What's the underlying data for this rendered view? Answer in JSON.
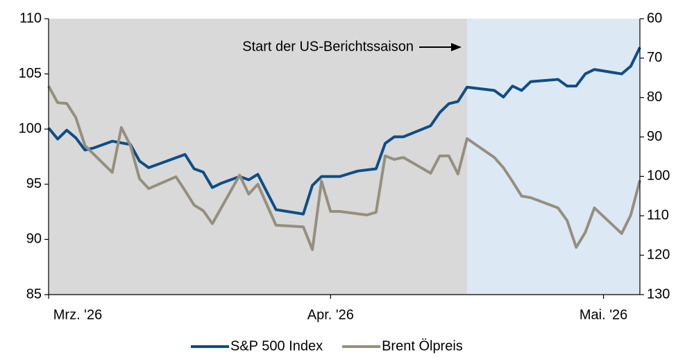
{
  "chart_data": {
    "type": "line",
    "annotation": "Start der US-Berichtssaison",
    "xlim": [
      0,
      65
    ],
    "xticks": [
      {
        "value": 0,
        "label": "Mrz. '26"
      },
      {
        "value": 31,
        "label": "Apr. '26"
      },
      {
        "value": 61,
        "label": "Mai. '26"
      }
    ],
    "ylim": [
      85,
      110
    ],
    "yticks": [
      85,
      90,
      95,
      100,
      105,
      110
    ],
    "y2lim": [
      130,
      60
    ],
    "y2ticks": [
      60,
      70,
      80,
      90,
      100,
      110,
      120,
      130
    ],
    "shading": [
      {
        "x0": 0,
        "x1": 46,
        "color": "#d9d9d9"
      },
      {
        "x0": 46,
        "x1": 65,
        "color": "#dde8f5"
      }
    ],
    "legend": "bottom",
    "series": [
      {
        "name": "S&P 500 Index",
        "color": "#0e4e85",
        "axis": "y",
        "x": [
          0,
          1,
          2,
          3,
          4,
          5,
          7,
          9,
          10,
          11,
          13,
          15,
          16,
          17,
          18,
          19,
          21,
          22,
          23,
          25,
          28,
          29,
          30,
          32,
          34,
          36,
          37,
          38,
          39,
          42,
          43,
          44,
          45,
          46,
          49,
          50,
          51,
          52,
          53,
          56,
          57,
          58,
          59,
          60,
          63,
          64,
          65
        ],
        "values": [
          100.1,
          99.1,
          99.9,
          99.2,
          98.1,
          98.3,
          98.9,
          98.6,
          97.1,
          96.5,
          97.1,
          97.7,
          96.4,
          96.1,
          94.7,
          95.1,
          95.7,
          95.4,
          95.9,
          92.7,
          92.3,
          94.9,
          95.7,
          95.7,
          96.2,
          96.4,
          98.7,
          99.3,
          99.3,
          100.3,
          101.5,
          102.3,
          102.5,
          103.8,
          103.5,
          102.9,
          103.9,
          103.5,
          104.3,
          104.5,
          103.9,
          103.9,
          105.0,
          105.4,
          105.0,
          105.7,
          107.4
        ]
      },
      {
        "name": "Brent Ölpreis",
        "color": "#958f7f",
        "axis": "y2",
        "x": [
          0,
          1,
          2,
          3,
          4,
          7,
          8,
          9,
          10,
          11,
          14,
          15,
          16,
          17,
          18,
          21,
          22,
          23,
          25,
          28,
          29,
          30,
          31,
          32,
          35,
          36,
          37,
          38,
          39,
          42,
          43,
          44,
          45,
          46,
          49,
          50,
          51,
          52,
          53,
          56,
          57,
          58,
          59,
          60,
          63,
          64,
          65
        ],
        "values": [
          77.1,
          81.3,
          81.5,
          85.1,
          92.2,
          99.0,
          87.6,
          92.2,
          100.6,
          103.1,
          100.1,
          103.6,
          107.3,
          108.7,
          112.0,
          99.7,
          104.5,
          102.0,
          112.4,
          112.8,
          118.6,
          101.2,
          108.9,
          108.9,
          109.8,
          109.1,
          94.8,
          95.7,
          95.2,
          99.2,
          94.8,
          94.8,
          99.4,
          90.4,
          95.2,
          97.8,
          101.3,
          105.0,
          105.4,
          108.0,
          111.2,
          118.0,
          114.2,
          108.0,
          114.5,
          109.8,
          101.0
        ]
      }
    ]
  }
}
